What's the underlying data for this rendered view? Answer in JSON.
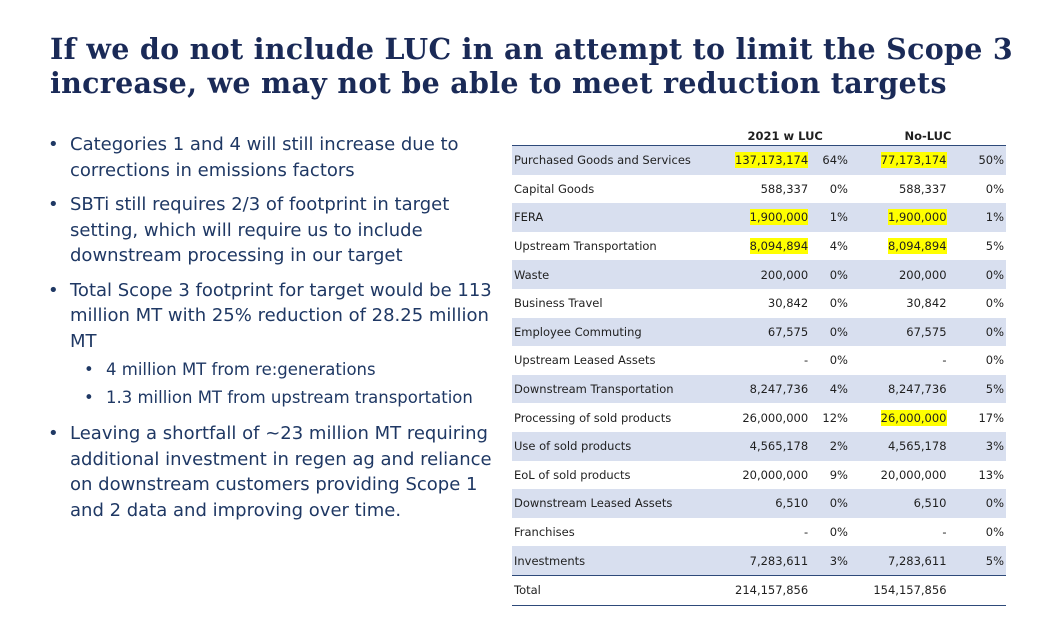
{
  "title": {
    "line1": "If we do not include LUC in an attempt to limit the Scope 3",
    "line2": "increase, we may not be able to meet reduction targets"
  },
  "bullets": {
    "b1": "Categories 1 and 4 will still increase due to corrections in emissions factors",
    "b2": "SBTi still requires 2/3 of footprint in target setting, which will require us to include downstream processing in our target",
    "b3": "Total Scope 3 footprint for target would be 113 million MT with 25% reduction of 28.25 million MT",
    "b3_sub1": "4 million MT from re:generations",
    "b3_sub2": "1.3 million MT from upstream transportation",
    "b4": "Leaving a shortfall of ~23 million MT requiring additional investment in regen ag and reliance on downstream customers providing Scope 1 and 2 data and improving over time."
  },
  "table": {
    "headers": {
      "col1": "2021 w LUC",
      "col2": "No-LUC"
    },
    "rows": [
      {
        "name": "Purchased Goods and Services",
        "v1": "137,173,174",
        "p1": "64%",
        "v2": "77,173,174",
        "p2": "50%"
      },
      {
        "name": "Capital Goods",
        "v1": "588,337",
        "p1": "0%",
        "v2": "588,337",
        "p2": "0%"
      },
      {
        "name": "FERA",
        "v1": "1,900,000",
        "p1": "1%",
        "v2": "1,900,000",
        "p2": "1%"
      },
      {
        "name": "Upstream Transportation",
        "v1": "8,094,894",
        "p1": "4%",
        "v2": "8,094,894",
        "p2": "5%"
      },
      {
        "name": "Waste",
        "v1": "200,000",
        "p1": "0%",
        "v2": "200,000",
        "p2": "0%"
      },
      {
        "name": "Business Travel",
        "v1": "30,842",
        "p1": "0%",
        "v2": "30,842",
        "p2": "0%"
      },
      {
        "name": "Employee Commuting",
        "v1": "67,575",
        "p1": "0%",
        "v2": "67,575",
        "p2": "0%"
      },
      {
        "name": "Upstream Leased Assets",
        "v1": "-",
        "p1": "0%",
        "v2": "-",
        "p2": "0%"
      },
      {
        "name": "Downstream Transportation",
        "v1": "8,247,736",
        "p1": "4%",
        "v2": "8,247,736",
        "p2": "5%"
      },
      {
        "name": "Processing of sold products",
        "v1": "26,000,000",
        "p1": "12%",
        "v2": "26,000,000",
        "p2": "17%"
      },
      {
        "name": "Use of sold products",
        "v1": "4,565,178",
        "p1": "2%",
        "v2": "4,565,178",
        "p2": "3%"
      },
      {
        "name": "EoL of sold products",
        "v1": "20,000,000",
        "p1": "9%",
        "v2": "20,000,000",
        "p2": "13%"
      },
      {
        "name": "Downstream Leased Assets",
        "v1": "6,510",
        "p1": "0%",
        "v2": "6,510",
        "p2": "0%"
      },
      {
        "name": "Franchises",
        "v1": "-",
        "p1": "0%",
        "v2": "-",
        "p2": "0%"
      },
      {
        "name": "Investments",
        "v1": "7,283,611",
        "p1": "3%",
        "v2": "7,283,611",
        "p2": "5%"
      }
    ],
    "total": {
      "name": "Total",
      "v1": "214,157,856",
      "v2": "154,157,856"
    },
    "highlight_color": "#ffff00",
    "stripe_color": "#d8dfef"
  }
}
